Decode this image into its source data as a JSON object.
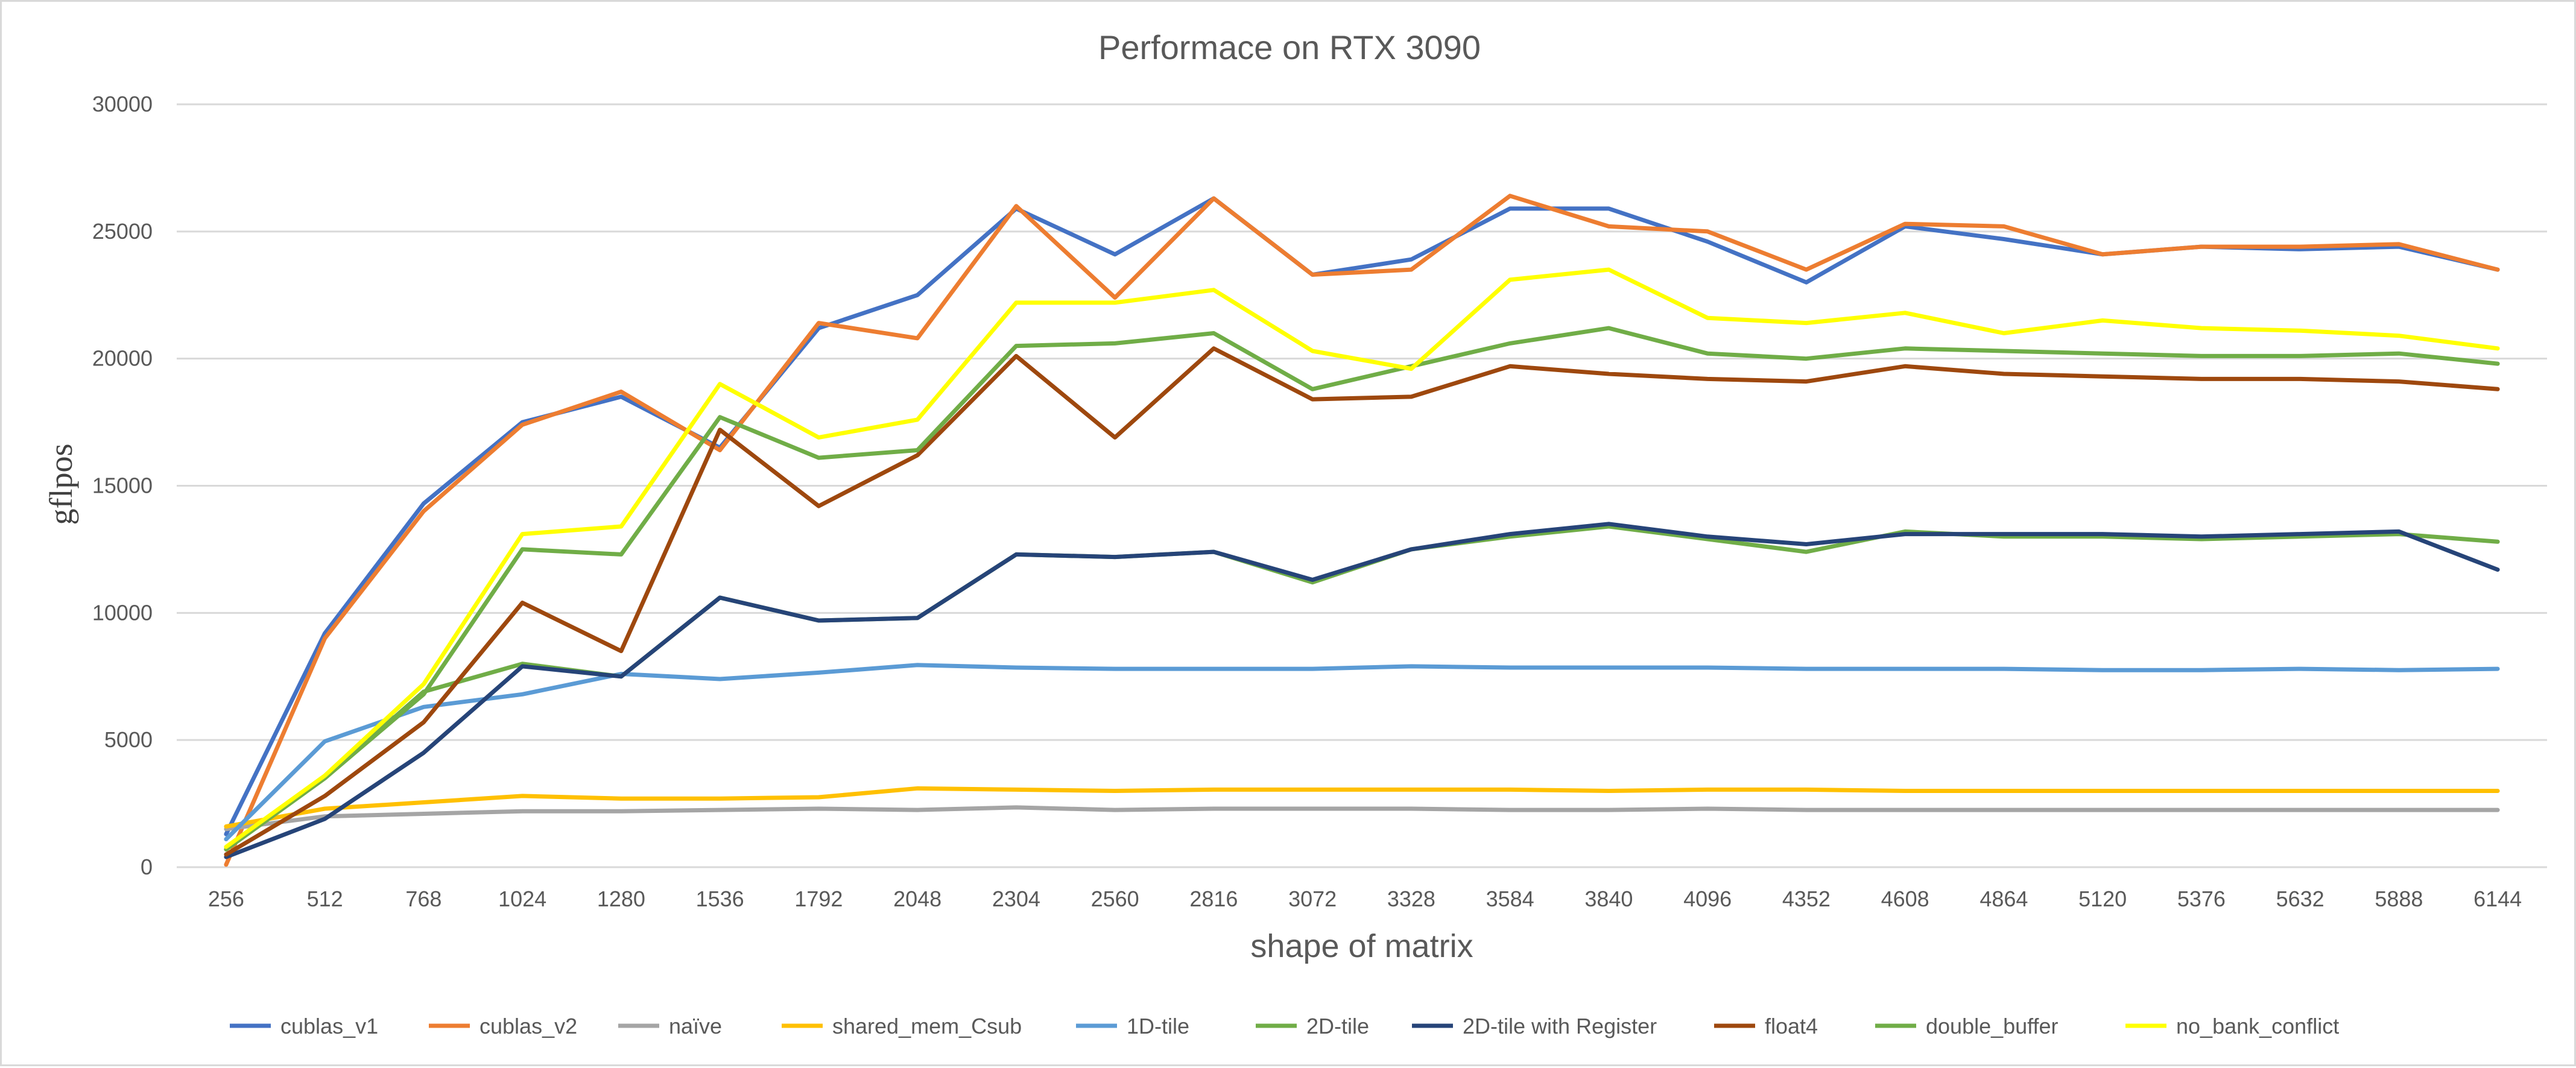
{
  "chart_data": {
    "type": "line",
    "title": "Performace on RTX 3090",
    "xlabel": "shape of matrix",
    "ylabel": "gflpos",
    "ylim": [
      0,
      30000
    ],
    "yticks": [
      0,
      5000,
      10000,
      15000,
      20000,
      25000,
      30000
    ],
    "ytick_labels": [
      "0",
      "5000",
      "10000",
      "15000",
      "20000",
      "25000",
      "30000"
    ],
    "grid": true,
    "legend_position": "bottom",
    "categories": [
      "256",
      "512",
      "768",
      "1024",
      "1280",
      "1536",
      "1792",
      "2048",
      "2304",
      "2560",
      "2816",
      "3072",
      "3328",
      "3584",
      "3840",
      "4096",
      "4352",
      "4608",
      "4864",
      "5120",
      "5376",
      "5632",
      "5888",
      "6144"
    ],
    "series": [
      {
        "name": "cublas_v1",
        "color": "#4472C4",
        "values": [
          1300,
          9200,
          14300,
          17500,
          18500,
          16500,
          21200,
          22500,
          25900,
          24100,
          26300,
          23300,
          23900,
          25900,
          25900,
          24600,
          23000,
          25200,
          24700,
          24100,
          24400,
          24300,
          24400,
          23500
        ]
      },
      {
        "name": "cublas_v2",
        "color": "#ED7D31",
        "values": [
          100,
          9000,
          14000,
          17400,
          18700,
          16400,
          21400,
          20800,
          26000,
          22400,
          26300,
          23300,
          23500,
          26400,
          25200,
          25000,
          23500,
          25300,
          25200,
          24100,
          24400,
          24400,
          24500,
          23500
        ]
      },
      {
        "name": "naïve",
        "color": "#A5A5A5",
        "values": [
          1500,
          2000,
          2100,
          2200,
          2200,
          2250,
          2300,
          2250,
          2350,
          2250,
          2300,
          2300,
          2300,
          2250,
          2250,
          2300,
          2250,
          2250,
          2250,
          2250,
          2250,
          2250,
          2250,
          2250
        ]
      },
      {
        "name": "shared_mem_Csub",
        "color": "#FFC000",
        "values": [
          1600,
          2300,
          2550,
          2800,
          2700,
          2700,
          2750,
          3100,
          3050,
          3000,
          3050,
          3050,
          3050,
          3050,
          3000,
          3050,
          3050,
          3000,
          3000,
          3000,
          3000,
          3000,
          3000,
          3000
        ]
      },
      {
        "name": "1D-tile",
        "color": "#5B9BD5",
        "values": [
          1100,
          4950,
          6300,
          6800,
          7600,
          7400,
          7650,
          7950,
          7850,
          7800,
          7800,
          7800,
          7900,
          7850,
          7850,
          7850,
          7800,
          7800,
          7800,
          7750,
          7750,
          7800,
          7750,
          7800
        ]
      },
      {
        "name": "2D-tile",
        "color": "#70AD47",
        "values": [
          700,
          3500,
          6900,
          8000,
          7500,
          10600,
          9700,
          9800,
          12300,
          12200,
          12400,
          11200,
          12500,
          13000,
          13400,
          12900,
          12400,
          13200,
          13000,
          13000,
          12900,
          13000,
          13100,
          12800
        ]
      },
      {
        "name": "2D-tile with Register",
        "color": "#264478",
        "values": [
          400,
          1900,
          4500,
          7900,
          7500,
          10600,
          9700,
          9800,
          12300,
          12200,
          12400,
          11300,
          12500,
          13100,
          13500,
          13000,
          12700,
          13100,
          13100,
          13100,
          13000,
          13100,
          13200,
          11700
        ]
      },
      {
        "name": "float4",
        "color": "#9E480E",
        "values": [
          500,
          2800,
          5700,
          10400,
          8500,
          17200,
          14200,
          16200,
          20100,
          16900,
          20400,
          18400,
          18500,
          19700,
          19400,
          19200,
          19100,
          19700,
          19400,
          19300,
          19200,
          19200,
          19100,
          18800
        ]
      },
      {
        "name": "double_buffer",
        "color": "#70AD47",
        "values": [
          700,
          3500,
          6800,
          12500,
          12300,
          17700,
          16100,
          16400,
          20500,
          20600,
          21000,
          18800,
          19700,
          20600,
          21200,
          20200,
          20000,
          20400,
          20300,
          20200,
          20100,
          20100,
          20200,
          19800
        ]
      },
      {
        "name": "no_bank_conflict",
        "color": "#FFFF00",
        "values": [
          800,
          3600,
          7200,
          13100,
          13400,
          19000,
          16900,
          17600,
          22200,
          22200,
          22700,
          20300,
          19600,
          23100,
          23500,
          21600,
          21400,
          21800,
          21000,
          21500,
          21200,
          21100,
          20900,
          20400
        ]
      }
    ]
  }
}
